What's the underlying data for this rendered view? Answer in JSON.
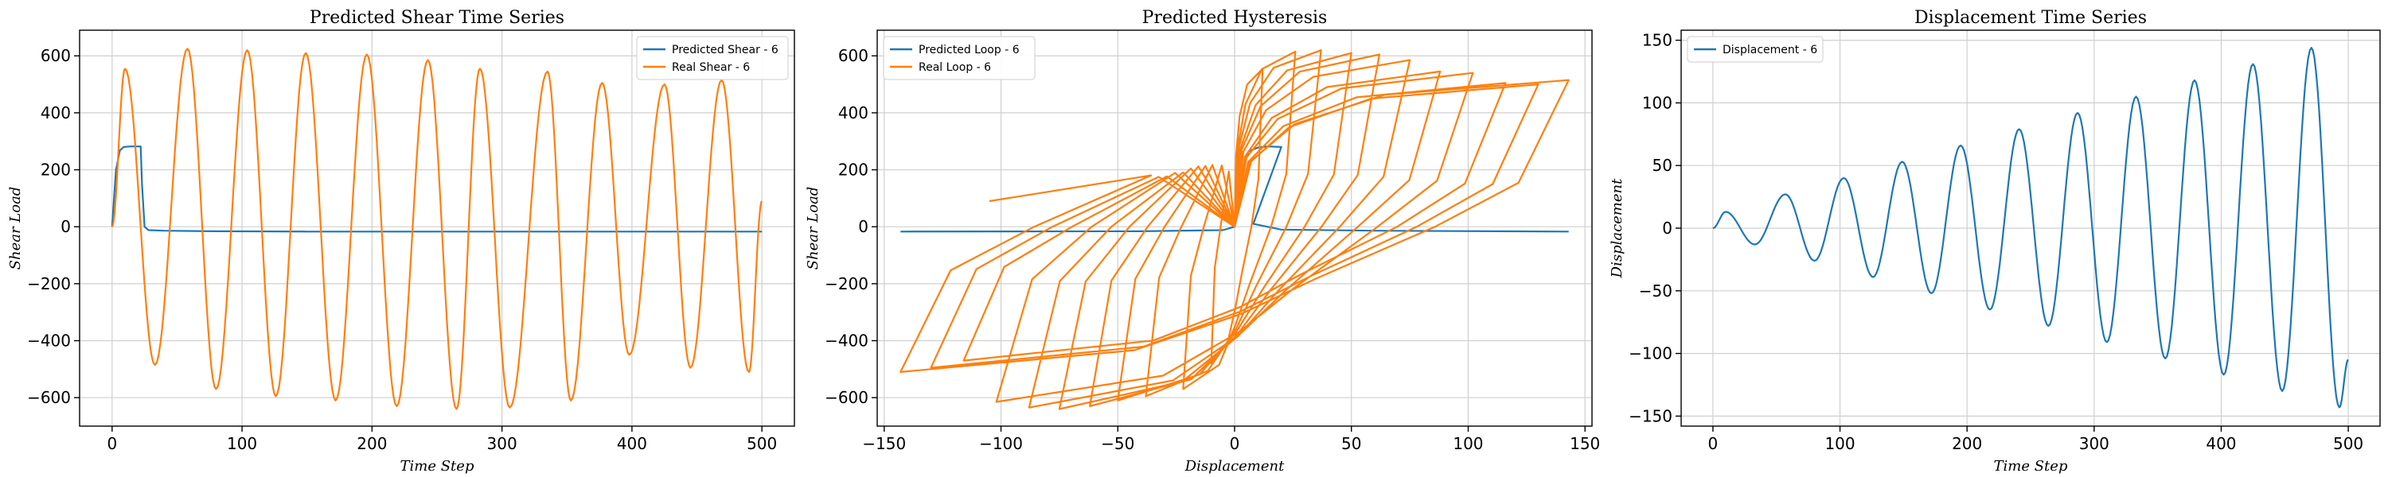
{
  "chart_data": [
    {
      "type": "line",
      "title": "Predicted Shear Time Series",
      "xlabel": "Time Step",
      "ylabel": "Shear Load",
      "xlim": [
        -25,
        525
      ],
      "ylim": [
        -700,
        690
      ],
      "xticks": [
        0,
        100,
        200,
        300,
        400,
        500
      ],
      "yticks": [
        -600,
        -400,
        -200,
        0,
        200,
        400,
        600
      ],
      "grid": true,
      "legend": "top-right",
      "series": [
        {
          "name": "Predicted Shear - 6",
          "color": "#1f77b4",
          "style": "points",
          "points": [
            [
              0,
              0
            ],
            [
              3,
              200
            ],
            [
              6,
              268
            ],
            [
              9,
              280
            ],
            [
              14,
              282
            ],
            [
              22,
              282
            ],
            [
              23,
              150
            ],
            [
              25,
              0
            ],
            [
              28,
              -12
            ],
            [
              40,
              -14
            ],
            [
              80,
              -16
            ],
            [
              150,
              -17
            ],
            [
              300,
              -17
            ],
            [
              500,
              -17
            ]
          ]
        },
        {
          "name": "Real Shear - 6",
          "color": "#ff7f0e",
          "style": "wave",
          "period": 46,
          "start": [
            0,
            0
          ],
          "end": [
            500,
            90
          ],
          "extrema": [
            [
              10,
              555
            ],
            [
              33,
              -485
            ],
            [
              58,
              625
            ],
            [
              80,
              -570
            ],
            [
              104,
              620
            ],
            [
              126,
              -595
            ],
            [
              149,
              610
            ],
            [
              172,
              -610
            ],
            [
              196,
              605
            ],
            [
              219,
              -630
            ],
            [
              243,
              585
            ],
            [
              265,
              -640
            ],
            [
              283,
              555
            ],
            [
              306,
              -635
            ],
            [
              335,
              545
            ],
            [
              353,
              -610
            ],
            [
              377,
              505
            ],
            [
              398,
              -450
            ],
            [
              425,
              500
            ],
            [
              445,
              -495
            ],
            [
              469,
              515
            ],
            [
              490,
              -510
            ]
          ]
        }
      ]
    },
    {
      "type": "line",
      "title": "Predicted Hysteresis",
      "xlabel": "Displacement",
      "ylabel": "Shear Load",
      "xlim": [
        -153,
        153
      ],
      "ylim": [
        -700,
        690
      ],
      "xticks": [
        -150,
        -100,
        -50,
        0,
        50,
        100,
        150
      ],
      "yticks": [
        -600,
        -400,
        -200,
        0,
        200,
        400,
        600
      ],
      "grid": true,
      "legend": "top-left",
      "series": [
        {
          "name": "Predicted Loop - 6",
          "color": "#1f77b4",
          "style": "points",
          "points": [
            [
              -143,
              -17
            ],
            [
              -40,
              -16
            ],
            [
              -5,
              -12
            ],
            [
              0,
              0
            ],
            [
              3,
              200
            ],
            [
              6,
              265
            ],
            [
              10,
              278
            ],
            [
              14,
              282
            ],
            [
              20,
              280
            ],
            [
              8,
              10
            ],
            [
              20,
              -10
            ],
            [
              60,
              -14
            ],
            [
              143,
              -17
            ]
          ]
        },
        {
          "name": "Real Loop - 6",
          "color": "#ff7f0e",
          "style": "hysteresis",
          "cycles": [
            [
              12,
              555,
              -10,
              -480
            ],
            [
              26,
              615,
              -22,
              -570
            ],
            [
              37,
              620,
              -38,
              -595
            ],
            [
              50,
              610,
              -50,
              -610
            ],
            [
              62,
              605,
              -62,
              -630
            ],
            [
              75,
              585,
              -75,
              -640
            ],
            [
              88,
              545,
              -88,
              -635
            ],
            [
              102,
              540,
              -102,
              -615
            ],
            [
              116,
              505,
              -116,
              -470
            ],
            [
              130,
              500,
              -130,
              -495
            ],
            [
              143,
              515,
              -143,
              -510
            ]
          ]
        }
      ]
    },
    {
      "type": "line",
      "title": "Displacement Time Series",
      "xlabel": "Time Step",
      "ylabel": "Displacement",
      "xlim": [
        -25,
        525
      ],
      "ylim": [
        -158,
        158
      ],
      "xticks": [
        0,
        100,
        200,
        300,
        400,
        500
      ],
      "yticks": [
        -150,
        -100,
        -50,
        0,
        50,
        100,
        150
      ],
      "grid": true,
      "legend": "top-left",
      "series": [
        {
          "name": "Displacement - 6",
          "color": "#1f77b4",
          "style": "wave",
          "period": 46,
          "start": [
            0,
            0
          ],
          "end": [
            500,
            -105
          ],
          "extrema": [
            [
              10,
              13
            ],
            [
              33,
              -13
            ],
            [
              57,
              27
            ],
            [
              80,
              -26
            ],
            [
              103,
              40
            ],
            [
              126,
              -39
            ],
            [
              149,
              53
            ],
            [
              172,
              -52
            ],
            [
              195,
              66
            ],
            [
              218,
              -65
            ],
            [
              241,
              79
            ],
            [
              264,
              -78
            ],
            [
              287,
              92
            ],
            [
              310,
              -91
            ],
            [
              333,
              105
            ],
            [
              356,
              -104
            ],
            [
              379,
              118
            ],
            [
              402,
              -117
            ],
            [
              425,
              131
            ],
            [
              448,
              -130
            ],
            [
              471,
              144
            ],
            [
              493,
              -143
            ]
          ]
        }
      ]
    }
  ]
}
